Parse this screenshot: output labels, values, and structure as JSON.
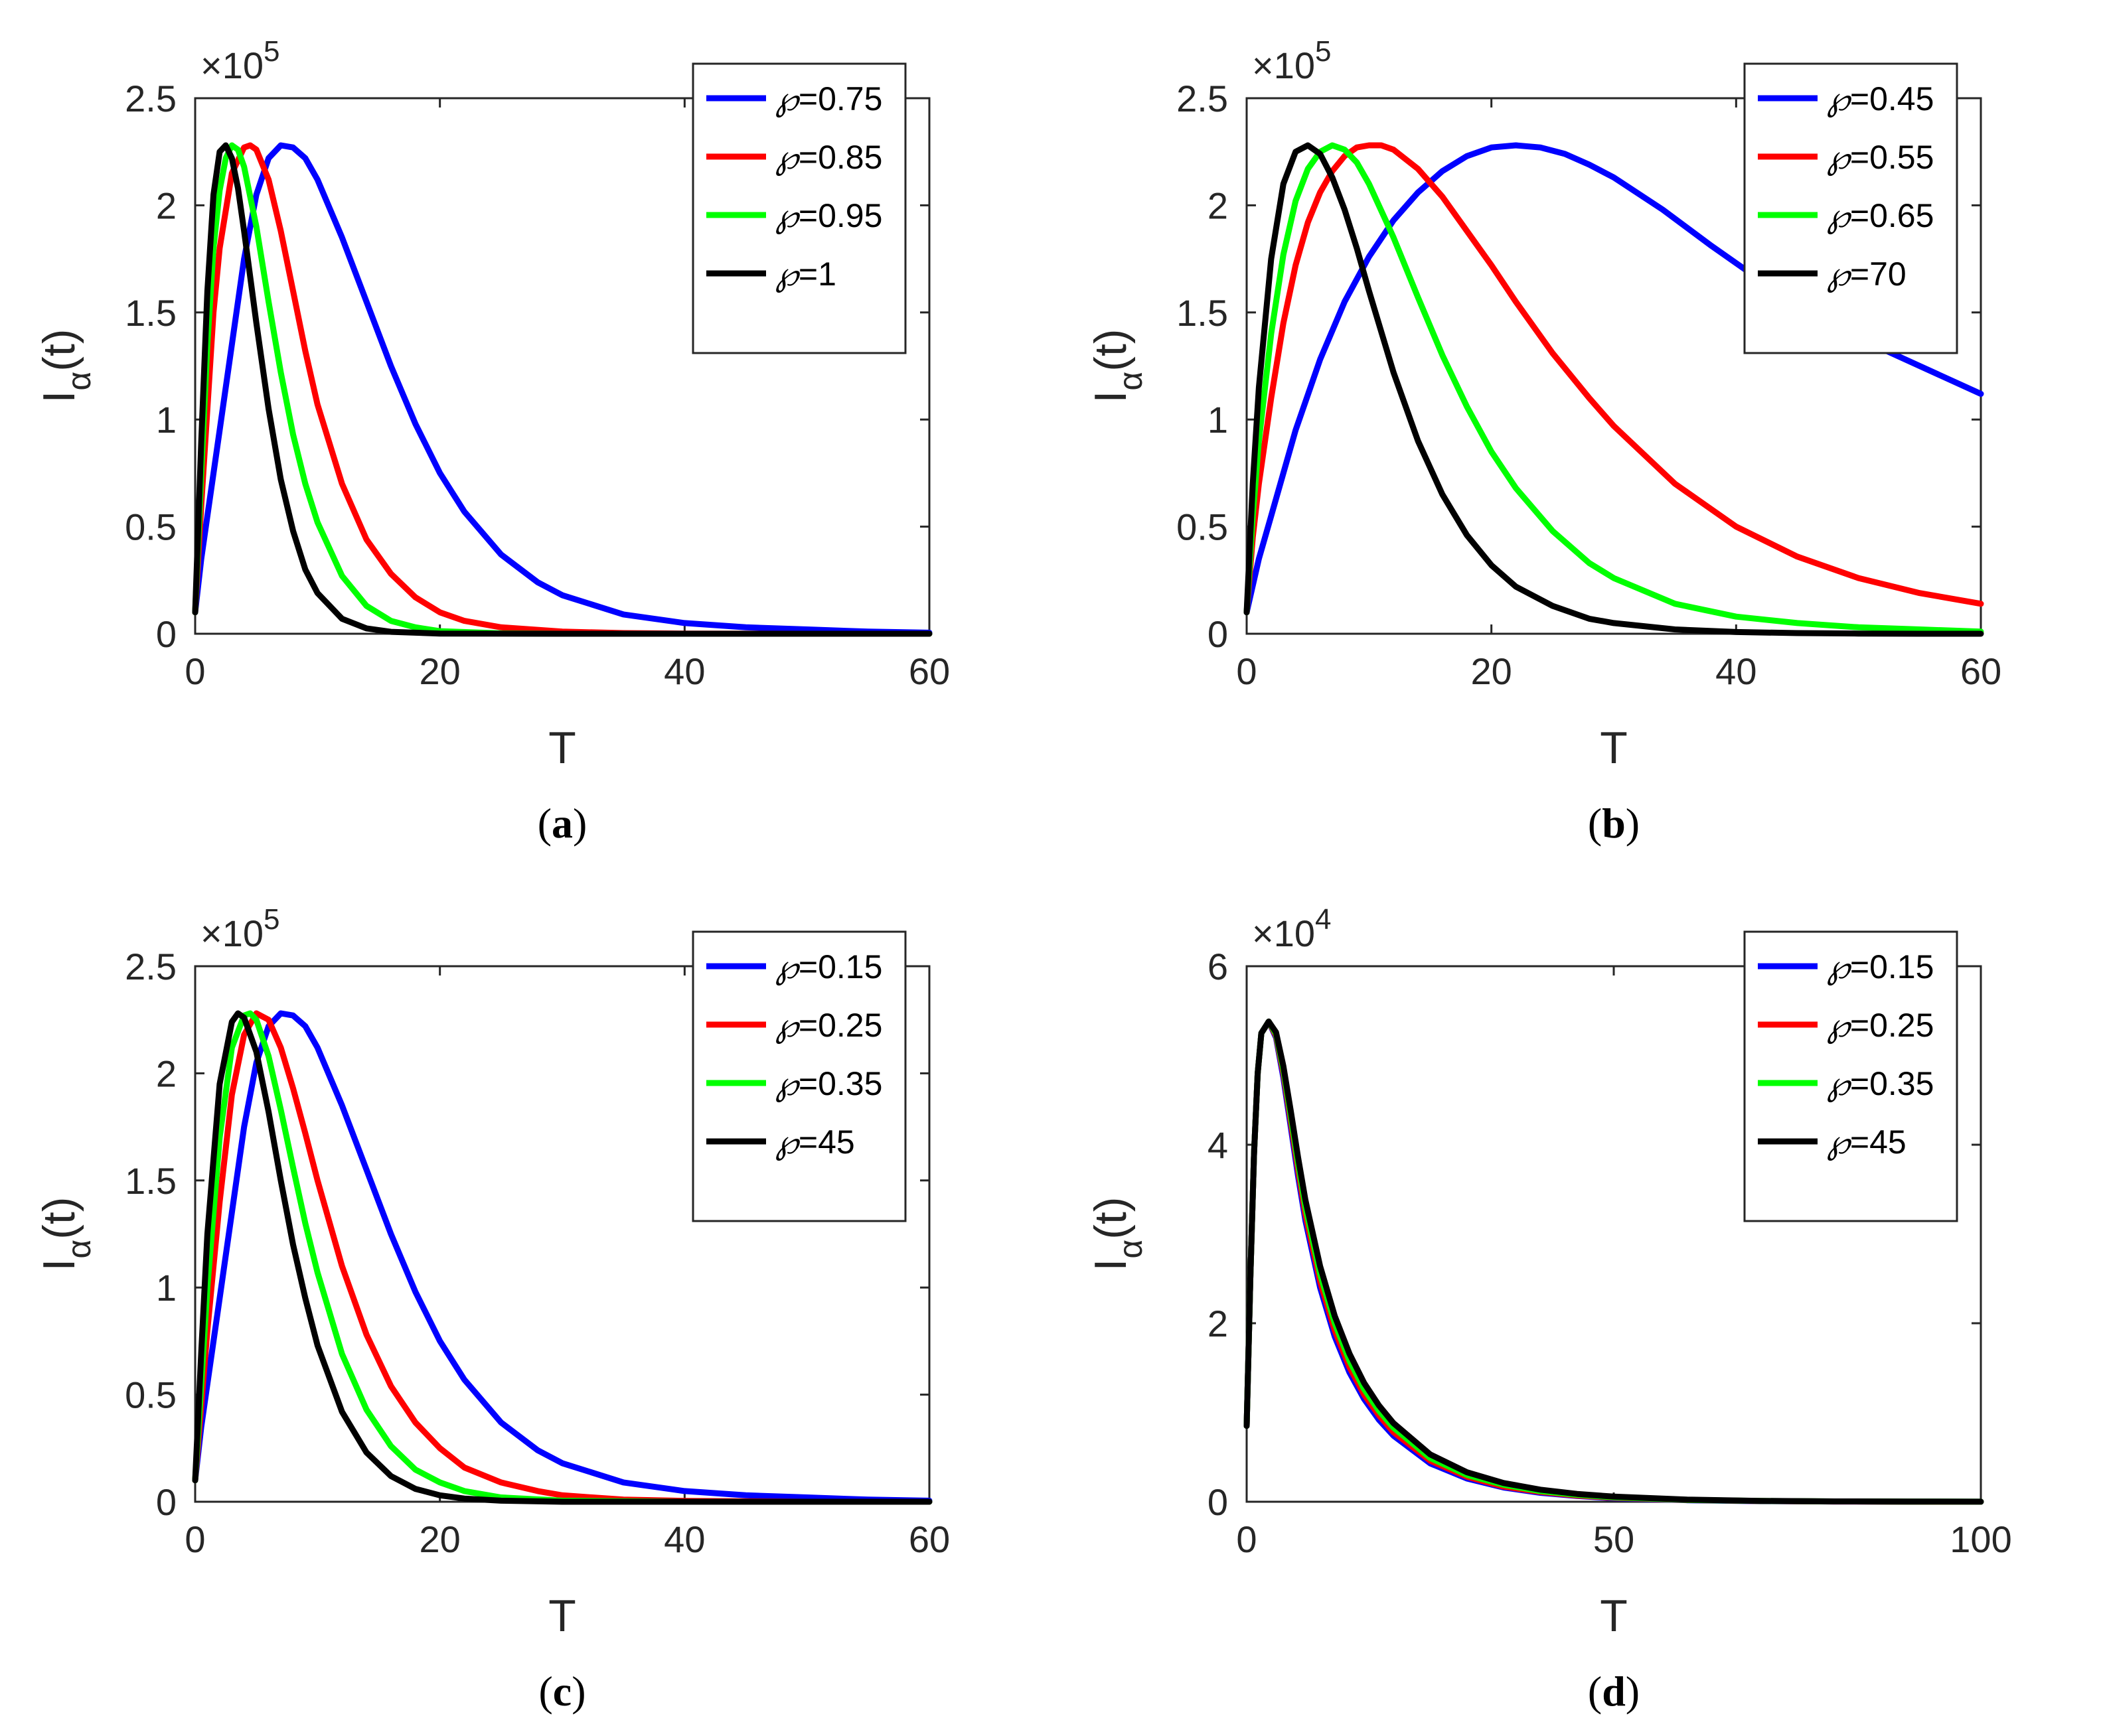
{
  "chart_data": [
    {
      "type": "line",
      "panel_label": "a",
      "xlabel": "T",
      "ylabel_main": "I",
      "ylabel_sub": "α",
      "ylabel_suffix": "(t)",
      "exponent_base": "×10",
      "exponent_power": "5",
      "xlim": [
        0,
        60
      ],
      "ylim": [
        0,
        2.5
      ],
      "xticks": [
        "0",
        "20",
        "40",
        "60"
      ],
      "yticks": [
        "0",
        "0.5",
        "1",
        "1.5",
        "2",
        "2.5"
      ],
      "legend_symbol": "℘",
      "series": [
        {
          "name": "=0.75",
          "color": "#0000ff",
          "x": [
            0,
            0.5,
            1,
            2,
            3,
            4,
            5,
            6,
            7,
            8,
            9,
            10,
            12,
            14,
            16,
            18,
            20,
            22,
            25,
            28,
            30,
            35,
            40,
            45,
            50,
            55,
            60
          ],
          "y": [
            0.1,
            0.35,
            0.55,
            0.95,
            1.35,
            1.75,
            2.05,
            2.22,
            2.28,
            2.27,
            2.22,
            2.12,
            1.85,
            1.55,
            1.25,
            0.98,
            0.75,
            0.57,
            0.37,
            0.24,
            0.18,
            0.09,
            0.05,
            0.03,
            0.02,
            0.01,
            0.005
          ]
        },
        {
          "name": "=0.85",
          "color": "#ff0000",
          "x": [
            0,
            0.5,
            1,
            1.5,
            2,
            3,
            4,
            4.5,
            5,
            6,
            7,
            8,
            9,
            10,
            12,
            14,
            16,
            18,
            20,
            22,
            25,
            30,
            35,
            40,
            50,
            60
          ],
          "y": [
            0.1,
            0.6,
            1.05,
            1.5,
            1.8,
            2.15,
            2.27,
            2.28,
            2.26,
            2.12,
            1.88,
            1.6,
            1.32,
            1.07,
            0.7,
            0.44,
            0.28,
            0.17,
            0.1,
            0.06,
            0.03,
            0.01,
            0.003,
            0.001,
            0,
            0
          ]
        },
        {
          "name": "=0.95",
          "color": "#00ff00",
          "x": [
            0,
            0.5,
            1,
            1.5,
            2,
            2.5,
            3,
            3.5,
            4,
            5,
            6,
            7,
            8,
            9,
            10,
            12,
            14,
            16,
            18,
            20,
            25,
            30,
            40,
            50,
            60
          ],
          "y": [
            0.1,
            0.75,
            1.35,
            1.8,
            2.07,
            2.22,
            2.28,
            2.26,
            2.18,
            1.9,
            1.55,
            1.22,
            0.93,
            0.7,
            0.52,
            0.27,
            0.13,
            0.06,
            0.03,
            0.012,
            0.002,
            0,
            0,
            0,
            0
          ]
        },
        {
          "name": "=1",
          "color": "#000000",
          "x": [
            0,
            0.5,
            1,
            1.5,
            2,
            2.5,
            3,
            3.5,
            4,
            5,
            6,
            7,
            8,
            9,
            10,
            12,
            14,
            16,
            20,
            30,
            40,
            60
          ],
          "y": [
            0.1,
            0.9,
            1.6,
            2.05,
            2.25,
            2.28,
            2.22,
            2.08,
            1.88,
            1.45,
            1.05,
            0.72,
            0.48,
            0.3,
            0.19,
            0.07,
            0.025,
            0.009,
            0.001,
            0,
            0,
            0
          ]
        }
      ]
    },
    {
      "type": "line",
      "panel_label": "b",
      "xlabel": "T",
      "ylabel_main": "I",
      "ylabel_sub": "α",
      "ylabel_suffix": "(t)",
      "exponent_base": "×10",
      "exponent_power": "5",
      "xlim": [
        0,
        60
      ],
      "ylim": [
        0,
        2.5
      ],
      "xticks": [
        "0",
        "20",
        "40",
        "60"
      ],
      "yticks": [
        "0",
        "0.5",
        "1",
        "1.5",
        "2",
        "2.5"
      ],
      "legend_symbol": "℘",
      "series": [
        {
          "name": "=0.45",
          "color": "#0000ff",
          "x": [
            0,
            1,
            2,
            4,
            6,
            8,
            10,
            12,
            14,
            16,
            18,
            20,
            22,
            24,
            26,
            28,
            30,
            34,
            38,
            42,
            46,
            50,
            55,
            60
          ],
          "y": [
            0.1,
            0.35,
            0.55,
            0.95,
            1.28,
            1.55,
            1.76,
            1.93,
            2.06,
            2.16,
            2.23,
            2.27,
            2.28,
            2.27,
            2.24,
            2.19,
            2.13,
            1.98,
            1.81,
            1.65,
            1.5,
            1.38,
            1.25,
            1.12
          ]
        },
        {
          "name": "=0.55",
          "color": "#ff0000",
          "x": [
            0,
            0.5,
            1,
            2,
            3,
            4,
            5,
            6,
            7,
            8,
            9,
            10,
            11,
            12,
            14,
            16,
            18,
            20,
            22,
            25,
            28,
            30,
            35,
            40,
            45,
            50,
            55,
            60
          ],
          "y": [
            0.1,
            0.45,
            0.7,
            1.1,
            1.45,
            1.72,
            1.92,
            2.06,
            2.16,
            2.23,
            2.27,
            2.28,
            2.28,
            2.26,
            2.17,
            2.04,
            1.88,
            1.72,
            1.55,
            1.31,
            1.1,
            0.97,
            0.7,
            0.5,
            0.36,
            0.26,
            0.19,
            0.14
          ]
        },
        {
          "name": "=0.65",
          "color": "#00ff00",
          "x": [
            0,
            0.5,
            1,
            2,
            3,
            4,
            5,
            6,
            7,
            8,
            9,
            10,
            12,
            14,
            16,
            18,
            20,
            22,
            25,
            28,
            30,
            35,
            40,
            45,
            50,
            55,
            60
          ],
          "y": [
            0.1,
            0.55,
            0.9,
            1.4,
            1.77,
            2.02,
            2.17,
            2.25,
            2.28,
            2.26,
            2.2,
            2.1,
            1.85,
            1.57,
            1.3,
            1.06,
            0.85,
            0.68,
            0.48,
            0.33,
            0.26,
            0.14,
            0.08,
            0.05,
            0.03,
            0.02,
            0.01
          ]
        },
        {
          "name": "=70",
          "color": "#000000",
          "x": [
            0,
            0.5,
            1,
            2,
            3,
            4,
            5,
            6,
            7,
            8,
            9,
            10,
            12,
            14,
            16,
            18,
            20,
            22,
            25,
            28,
            30,
            35,
            40,
            45,
            50,
            55,
            60
          ],
          "y": [
            0.1,
            0.7,
            1.15,
            1.75,
            2.1,
            2.25,
            2.28,
            2.24,
            2.13,
            1.98,
            1.8,
            1.6,
            1.22,
            0.9,
            0.65,
            0.46,
            0.32,
            0.22,
            0.13,
            0.07,
            0.05,
            0.02,
            0.008,
            0.003,
            0.001,
            0,
            0
          ]
        }
      ]
    },
    {
      "type": "line",
      "panel_label": "c",
      "xlabel": "T",
      "ylabel_main": "I",
      "ylabel_sub": "α",
      "ylabel_suffix": "(t)",
      "exponent_base": "×10",
      "exponent_power": "5",
      "xlim": [
        0,
        60
      ],
      "ylim": [
        0,
        2.5
      ],
      "xticks": [
        "0",
        "20",
        "40",
        "60"
      ],
      "yticks": [
        "0",
        "0.5",
        "1",
        "1.5",
        "2",
        "2.5"
      ],
      "legend_symbol": "℘",
      "series": [
        {
          "name": "=0.15",
          "color": "#0000ff",
          "x": [
            0,
            0.5,
            1,
            2,
            3,
            4,
            5,
            6,
            7,
            8,
            9,
            10,
            12,
            14,
            16,
            18,
            20,
            22,
            25,
            28,
            30,
            35,
            40,
            45,
            50,
            55,
            60
          ],
          "y": [
            0.1,
            0.35,
            0.55,
            0.95,
            1.35,
            1.75,
            2.05,
            2.22,
            2.28,
            2.27,
            2.22,
            2.12,
            1.85,
            1.55,
            1.25,
            0.98,
            0.75,
            0.57,
            0.37,
            0.24,
            0.18,
            0.09,
            0.05,
            0.03,
            0.02,
            0.01,
            0.005
          ]
        },
        {
          "name": "=0.25",
          "color": "#ff0000",
          "x": [
            0,
            0.5,
            1,
            2,
            3,
            4,
            5,
            6,
            7,
            8,
            9,
            10,
            12,
            14,
            16,
            18,
            20,
            22,
            25,
            28,
            30,
            35,
            40,
            50,
            60
          ],
          "y": [
            0.1,
            0.45,
            0.8,
            1.4,
            1.9,
            2.18,
            2.28,
            2.25,
            2.12,
            1.93,
            1.72,
            1.5,
            1.1,
            0.78,
            0.54,
            0.37,
            0.25,
            0.16,
            0.09,
            0.05,
            0.03,
            0.01,
            0.004,
            0,
            0
          ]
        },
        {
          "name": "=0.35",
          "color": "#00ff00",
          "x": [
            0,
            0.5,
            1,
            2,
            3,
            4,
            4.5,
            5,
            6,
            7,
            8,
            9,
            10,
            12,
            14,
            16,
            18,
            20,
            22,
            25,
            30,
            40,
            50,
            60
          ],
          "y": [
            0.1,
            0.55,
            1.0,
            1.7,
            2.12,
            2.27,
            2.28,
            2.25,
            2.08,
            1.83,
            1.56,
            1.3,
            1.07,
            0.69,
            0.43,
            0.26,
            0.15,
            0.09,
            0.05,
            0.02,
            0.005,
            0,
            0,
            0
          ]
        },
        {
          "name": "=45",
          "color": "#000000",
          "x": [
            0,
            0.5,
            1,
            2,
            3,
            3.5,
            4,
            5,
            6,
            7,
            8,
            9,
            10,
            12,
            14,
            16,
            18,
            20,
            22,
            25,
            30,
            40,
            60
          ],
          "y": [
            0.1,
            0.7,
            1.25,
            1.95,
            2.24,
            2.28,
            2.26,
            2.1,
            1.82,
            1.5,
            1.2,
            0.95,
            0.73,
            0.42,
            0.23,
            0.12,
            0.06,
            0.03,
            0.015,
            0.005,
            0,
            0,
            0
          ]
        }
      ]
    },
    {
      "type": "line",
      "panel_label": "d",
      "xlabel": "T",
      "ylabel_main": "I",
      "ylabel_sub": "α",
      "ylabel_suffix": "(t)",
      "exponent_base": "×10",
      "exponent_power": "4",
      "xlim": [
        0,
        100
      ],
      "ylim": [
        0,
        6
      ],
      "xticks": [
        "0",
        "50",
        "100"
      ],
      "yticks": [
        "0",
        "2",
        "4",
        "6"
      ],
      "legend_symbol": "℘",
      "series": [
        {
          "name": "=0.15",
          "color": "#0000ff",
          "x": [
            0,
            0.5,
            1,
            1.5,
            2,
            3,
            4,
            5,
            6,
            7,
            8,
            10,
            12,
            14,
            16,
            18,
            20,
            25,
            30,
            35,
            40,
            45,
            50,
            60,
            70,
            80,
            90,
            100
          ],
          "y": [
            0.85,
            2.5,
            3.9,
            4.8,
            5.25,
            5.38,
            5.2,
            4.75,
            4.2,
            3.65,
            3.15,
            2.4,
            1.85,
            1.45,
            1.15,
            0.92,
            0.74,
            0.43,
            0.26,
            0.16,
            0.1,
            0.065,
            0.04,
            0.017,
            0.007,
            0.003,
            0.001,
            0
          ]
        },
        {
          "name": "=0.25",
          "color": "#ff0000",
          "x": [
            0,
            0.5,
            1,
            1.5,
            2,
            3,
            4,
            5,
            6,
            7,
            8,
            10,
            12,
            14,
            16,
            18,
            20,
            25,
            30,
            35,
            40,
            45,
            50,
            60,
            70,
            80,
            90,
            100
          ],
          "y": [
            0.85,
            2.5,
            3.9,
            4.8,
            5.25,
            5.38,
            5.22,
            4.8,
            4.26,
            3.72,
            3.22,
            2.47,
            1.92,
            1.51,
            1.2,
            0.97,
            0.78,
            0.46,
            0.28,
            0.17,
            0.11,
            0.07,
            0.045,
            0.019,
            0.008,
            0.003,
            0.001,
            0
          ]
        },
        {
          "name": "=0.35",
          "color": "#00ff00",
          "x": [
            0,
            0.5,
            1,
            1.5,
            2,
            3,
            4,
            5,
            6,
            7,
            8,
            10,
            12,
            14,
            16,
            18,
            20,
            25,
            30,
            35,
            40,
            45,
            50,
            60,
            70,
            80,
            90,
            100
          ],
          "y": [
            0.85,
            2.5,
            3.9,
            4.8,
            5.25,
            5.38,
            5.24,
            4.84,
            4.32,
            3.79,
            3.3,
            2.55,
            2.0,
            1.58,
            1.26,
            1.02,
            0.83,
            0.49,
            0.3,
            0.19,
            0.12,
            0.078,
            0.05,
            0.021,
            0.009,
            0.004,
            0.002,
            0.001
          ]
        },
        {
          "name": "=45",
          "color": "#000000",
          "x": [
            0,
            0.5,
            1,
            1.5,
            2,
            3,
            4,
            5,
            6,
            7,
            8,
            10,
            12,
            14,
            16,
            18,
            20,
            25,
            30,
            35,
            40,
            45,
            50,
            60,
            70,
            80,
            90,
            100
          ],
          "y": [
            0.85,
            2.5,
            3.9,
            4.8,
            5.25,
            5.38,
            5.26,
            4.88,
            4.38,
            3.86,
            3.38,
            2.64,
            2.08,
            1.66,
            1.33,
            1.08,
            0.88,
            0.53,
            0.33,
            0.21,
            0.135,
            0.088,
            0.057,
            0.024,
            0.01,
            0.004,
            0.002,
            0.001
          ]
        }
      ]
    }
  ]
}
